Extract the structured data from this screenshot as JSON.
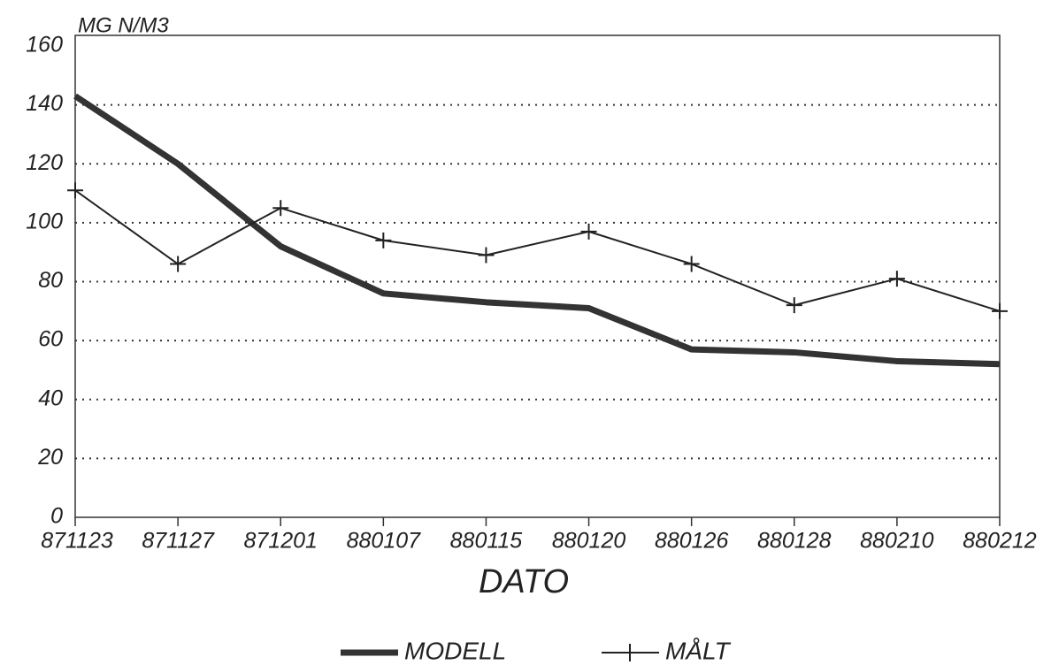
{
  "chart_data": {
    "type": "line",
    "y_label": "MG N/M3",
    "x_label": "DATO",
    "categories": [
      "871123",
      "871127",
      "871201",
      "880107",
      "880115",
      "880120",
      "880126",
      "880128",
      "880210",
      "880212"
    ],
    "series": [
      {
        "name": "MODELL",
        "color": "#333333",
        "values": [
          143,
          120,
          92,
          76,
          73,
          71,
          57,
          56,
          53,
          52
        ]
      },
      {
        "name": "MÅLT",
        "color": "#222222",
        "values": [
          111,
          86,
          105,
          94,
          89,
          97,
          86,
          72,
          81,
          70
        ]
      }
    ],
    "ylim": [
      0,
      160
    ],
    "yticks": [
      0,
      20,
      40,
      60,
      80,
      100,
      120,
      140,
      160
    ],
    "grid": true
  }
}
